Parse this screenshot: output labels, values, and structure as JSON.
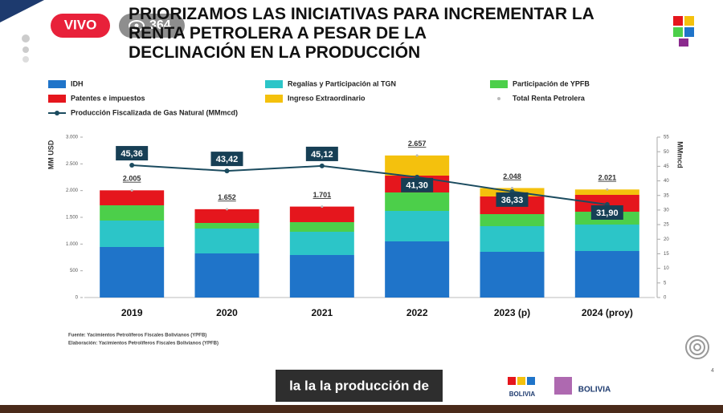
{
  "overlay": {
    "live": "VIVO",
    "viewers": "364",
    "caption": "la la la producción de",
    "logo_text": "BOLIVIA",
    "page_number": "4"
  },
  "chart_data": {
    "type": "bar",
    "stacked": true,
    "title": "PRIORIZAMOS LAS INICIATIVAS PARA INCREMENTAR LA RENTA PETROLERA A PESAR DE LA DECLINACIÓN EN LA PRODUCCIÓN",
    "ylabel": "MM USD",
    "y2label": "MMmcd",
    "categories": [
      "2019",
      "2020",
      "2021",
      "2022",
      "2023 (p)",
      "2024 (proy)"
    ],
    "series": [
      {
        "name": "IDH",
        "color": "#1f74c9",
        "values": [
          945,
          825,
          795,
          1050,
          855,
          870
        ]
      },
      {
        "name": "Regalías y Participación al TGN",
        "color": "#2cc5c8",
        "values": [
          495,
          465,
          435,
          570,
          480,
          495
        ]
      },
      {
        "name": "Participación de YPFB",
        "color": "#4ccf4a",
        "values": [
          285,
          105,
          180,
          345,
          225,
          240
        ]
      },
      {
        "name": "Patentes e impuestos",
        "color": "#e5161d",
        "values": [
          280,
          257,
          291,
          315,
          330,
          315
        ]
      },
      {
        "name": "Ingreso Extraordinario",
        "color": "#f4c10d",
        "values": [
          0,
          0,
          0,
          377,
          158,
          101
        ]
      },
      {
        "name": "Total Renta Petrolera",
        "type": "total",
        "color": "#bbbbbb",
        "values": [
          2005,
          1652,
          1701,
          2657,
          2048,
          2021
        ],
        "value_labels": [
          "2.005",
          "1.652",
          "1.701",
          "2.657",
          "2.048",
          "2.021"
        ]
      },
      {
        "name": "Producción Fiscalizada de Gas Natural (MMmcd)",
        "type": "line",
        "axis": "y2",
        "color": "#1b4b5f",
        "values": [
          45.36,
          43.42,
          45.12,
          41.3,
          36.33,
          31.9
        ],
        "value_labels": [
          "45,36",
          "43,42",
          "45,12",
          "41,30",
          "36,33",
          "31,90"
        ]
      }
    ],
    "ylim": [
      0,
      3000
    ],
    "yticks": [
      0,
      500,
      {
        "value": 1000,
        "label": "1.000"
      },
      {
        "value": 1500,
        "label": "1.500"
      },
      {
        "value": 2000,
        "label": "2.000"
      },
      {
        "value": 2500,
        "label": "2.500"
      },
      {
        "value": 3000,
        "label": "3.000"
      }
    ],
    "y2lim": [
      0,
      55
    ],
    "y2ticks": [
      0,
      5,
      10,
      15,
      20,
      25,
      30,
      35,
      40,
      45,
      50,
      55
    ],
    "notes": [
      "Fuente: Yacimientos Petrolíferos Fiscales Bolivianos (YPFB)",
      "Elaboración: Yacimientos Petrolíferos Fiscales Bolivianos (YPFB)"
    ]
  }
}
